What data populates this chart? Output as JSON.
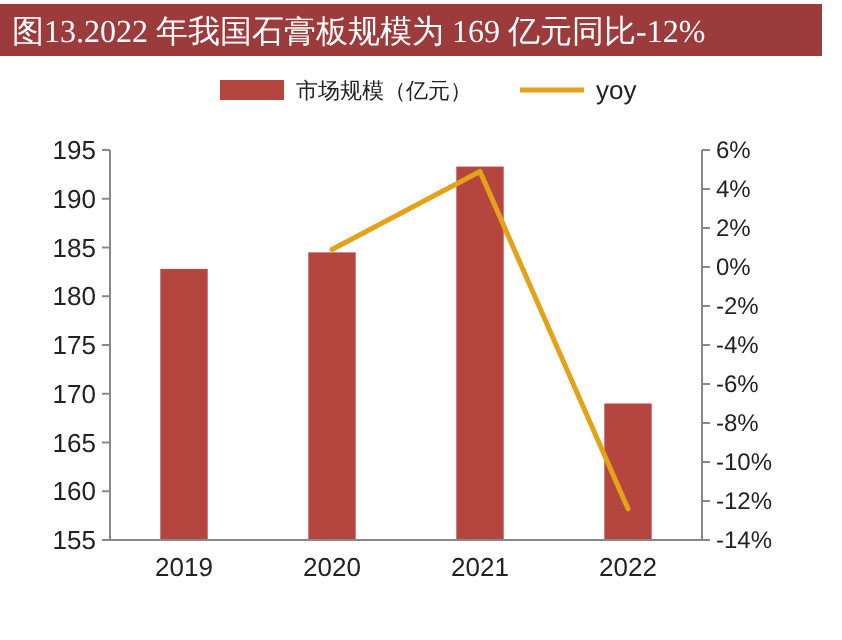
{
  "chart_data": {
    "type": "bar",
    "title": "图13.2022 年我国石膏板规模为 169 亿元同比-12%",
    "categories": [
      "2019",
      "2020",
      "2021",
      "2022"
    ],
    "series": [
      {
        "name": "市场规模（亿元）",
        "color": "#b5463f",
        "values": [
          182.8,
          184.5,
          193.3,
          169
        ]
      },
      {
        "name": "yoy",
        "type": "line",
        "axis": "y2",
        "color": "#e3a21a",
        "values": [
          null,
          0.9,
          4.9,
          -12.4
        ]
      }
    ],
    "ylim": [
      155,
      195
    ],
    "yticks": [
      155,
      160,
      165,
      170,
      175,
      180,
      185,
      190,
      195
    ],
    "y2lim": [
      -14,
      6
    ],
    "y2ticks": [
      {
        "value": -14,
        "label": "-14%"
      },
      {
        "value": -12,
        "label": "-12%"
      },
      {
        "value": -10,
        "label": "-10%"
      },
      {
        "value": -8,
        "label": "-8%"
      },
      {
        "value": -6,
        "label": "-6%"
      },
      {
        "value": -4,
        "label": "-4%"
      },
      {
        "value": -2,
        "label": "-2%"
      },
      {
        "value": 0,
        "label": "0%"
      },
      {
        "value": 2,
        "label": "2%"
      },
      {
        "value": 4,
        "label": "4%"
      },
      {
        "value": 6,
        "label": "6%"
      }
    ],
    "legend": "top",
    "grid": false
  }
}
